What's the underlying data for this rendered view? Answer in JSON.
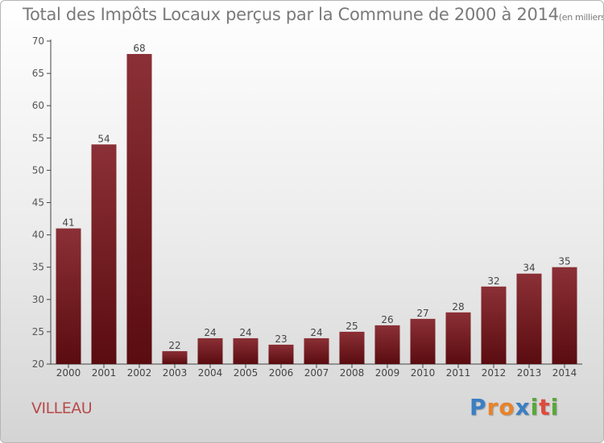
{
  "title": "Total des Impôts Locaux perçus par la Commune de 2000 à 2014",
  "title_unit": "(en milliers d'€)",
  "commune": "VILLEAU",
  "logo": {
    "letters": [
      "P",
      "r",
      "o",
      "x",
      "i",
      "t",
      "i"
    ],
    "colors": [
      "#3b7fc4",
      "#e8832a",
      "#e8832a",
      "#3b7fc4",
      "#5aa83a",
      "#e04a3a",
      "#5aa83a"
    ]
  },
  "colors": {
    "bar_top": "#8b3036",
    "bar_bottom": "#5a0c10",
    "axis": "#444444"
  },
  "chart_data": {
    "type": "bar",
    "title": "Total des Impôts Locaux perçus par la Commune de 2000 à 2014",
    "xlabel": "",
    "ylabel": "en milliers d'€",
    "categories": [
      "2000",
      "2001",
      "2002",
      "2003",
      "2004",
      "2005",
      "2006",
      "2007",
      "2008",
      "2009",
      "2010",
      "2011",
      "2012",
      "2013",
      "2014"
    ],
    "values": [
      41,
      54,
      68,
      22,
      24,
      24,
      23,
      24,
      25,
      26,
      27,
      28,
      32,
      34,
      35
    ],
    "ylim": [
      20,
      70
    ],
    "yticks": [
      20,
      25,
      30,
      35,
      40,
      45,
      50,
      55,
      60,
      65,
      70
    ],
    "grid": false
  }
}
